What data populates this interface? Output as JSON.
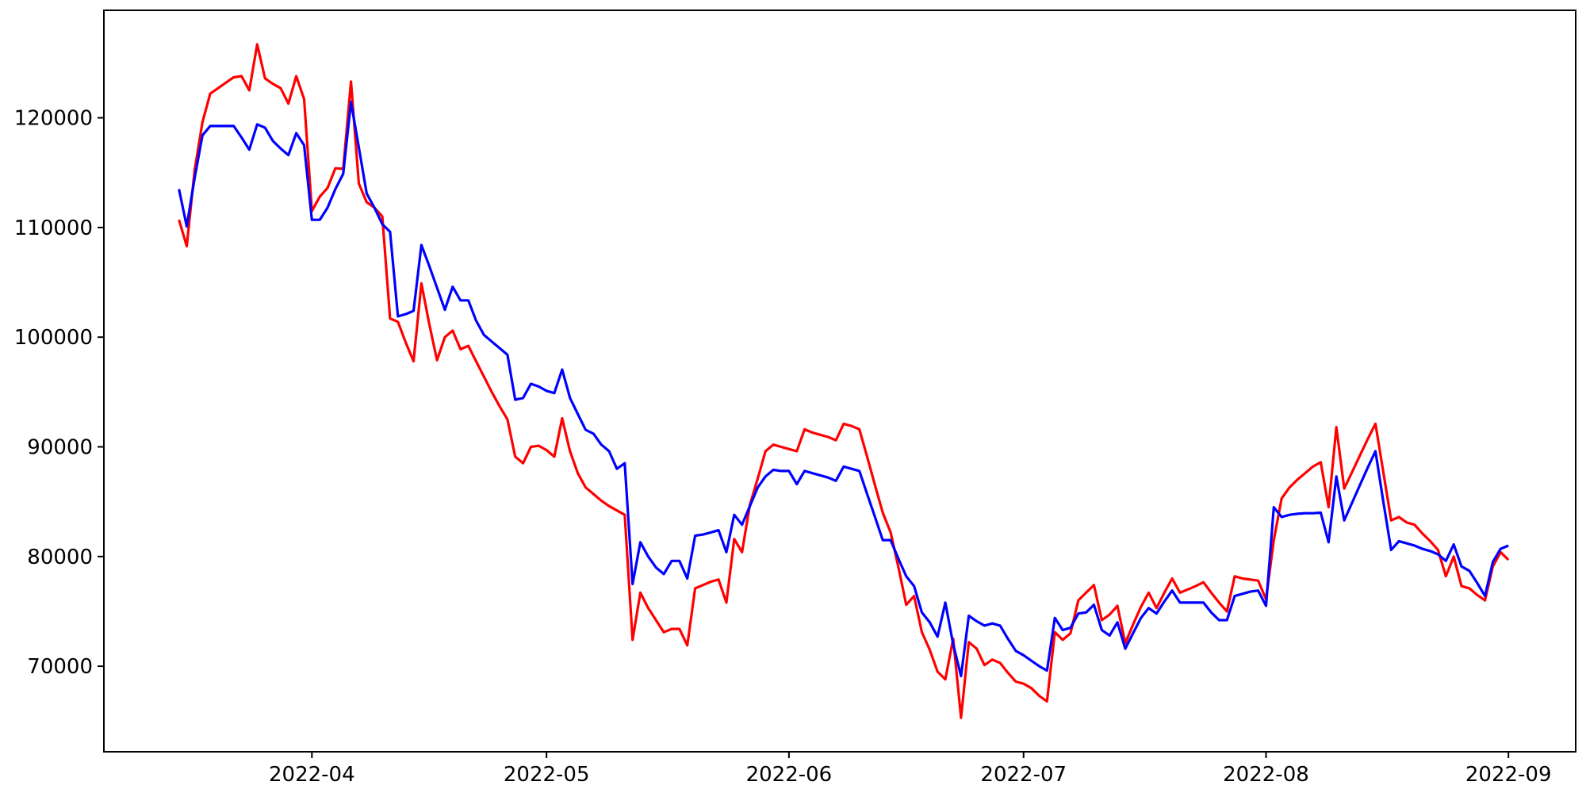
{
  "figure": {
    "background": "#ffffff",
    "axis_color": "#000000"
  },
  "chart_data": {
    "type": "line",
    "title": "",
    "xlabel": "",
    "ylabel": "",
    "grid": false,
    "legend": null,
    "start_date": "2022-03-15",
    "frequency": "daily",
    "x_tick_labels": [
      "2022-04",
      "2022-05",
      "2022-06",
      "2022-07",
      "2022-08",
      "2022-09"
    ],
    "x_tick_day_offsets": [
      17,
      47,
      78,
      108,
      139,
      170
    ],
    "y_ticks": [
      70000,
      80000,
      90000,
      100000,
      110000,
      120000
    ],
    "ylim": [
      62200,
      129800
    ],
    "xlim_days": [
      -9.6,
      178.6
    ],
    "series": [
      {
        "name": "series-red",
        "color": "#ff0000",
        "values": [
          110700,
          108300,
          115200,
          119600,
          122200,
          122700,
          123200,
          123700,
          123800,
          122500,
          126700,
          123600,
          123100,
          122700,
          121300,
          123800,
          121700,
          111500,
          112800,
          113600,
          115400,
          115350,
          123300,
          114000,
          112300,
          111800,
          111000,
          101700,
          101400,
          99500,
          97800,
          104900,
          101200,
          97900,
          100000,
          100600,
          98900,
          99200,
          97800,
          96400,
          95000,
          93700,
          92500,
          89100,
          88500,
          90000,
          90100,
          89700,
          89100,
          92600,
          89600,
          87600,
          86300,
          85700,
          85100,
          84600,
          84200,
          83800,
          72400,
          76700,
          75300,
          74200,
          73100,
          73400,
          73400,
          71900,
          77100,
          77400,
          77700,
          77900,
          75800,
          81600,
          80400,
          84700,
          87100,
          89600,
          90200,
          90000,
          89800,
          89600,
          91600,
          91300,
          91100,
          90900,
          90600,
          92100,
          91900,
          91600,
          89100,
          86500,
          84000,
          82200,
          79000,
          75600,
          76400,
          73100,
          71500,
          69500,
          68800,
          72500,
          65300,
          72200,
          71600,
          70100,
          70600,
          70300,
          69400,
          68600,
          68400,
          68000,
          67300,
          66800,
          73100,
          72400,
          73000,
          76000,
          76700,
          77400,
          74200,
          74700,
          75500,
          72100,
          73800,
          75400,
          76700,
          75300,
          76700,
          78000,
          76700,
          77000,
          77300,
          77650,
          76700,
          75800,
          75000,
          78200,
          78000,
          77900,
          77800,
          76100,
          81500,
          85300,
          86300,
          87000,
          87600,
          88200,
          88600,
          84500,
          91800,
          86200,
          87700,
          89200,
          90700,
          92100,
          87700,
          83300,
          83600,
          83100,
          82900,
          82100,
          81400,
          80600,
          78200,
          80000,
          77300,
          77100,
          76500,
          76000,
          79100,
          80400,
          79700
        ]
      },
      {
        "name": "series-blue",
        "color": "#0000ff",
        "values": [
          113500,
          110100,
          114500,
          118400,
          119250,
          119250,
          119250,
          119250,
          118200,
          117100,
          119400,
          119100,
          117900,
          117200,
          116600,
          118600,
          117500,
          110700,
          110700,
          111800,
          113500,
          114900,
          121450,
          117300,
          113100,
          111800,
          110300,
          109600,
          101900,
          102100,
          102400,
          108400,
          106500,
          104500,
          102500,
          104600,
          103350,
          103350,
          101500,
          100200,
          99600,
          99000,
          98400,
          94300,
          94450,
          95750,
          95500,
          95100,
          94900,
          97050,
          94450,
          93000,
          91550,
          91200,
          90200,
          89600,
          88000,
          88500,
          77500,
          81300,
          80000,
          79000,
          78400,
          79600,
          79600,
          78000,
          81900,
          82000,
          82200,
          82400,
          80400,
          83800,
          82900,
          84600,
          86300,
          87300,
          87900,
          87800,
          87800,
          86600,
          87800,
          87600,
          87400,
          87200,
          86900,
          88200,
          88000,
          87800,
          85700,
          83600,
          81500,
          81500,
          79800,
          78200,
          77300,
          74900,
          74000,
          72700,
          75800,
          72000,
          69100,
          74600,
          74100,
          73700,
          73900,
          73700,
          72500,
          71400,
          71000,
          70500,
          70000,
          69600,
          74400,
          73300,
          73500,
          74800,
          74900,
          75600,
          73300,
          72800,
          74000,
          71600,
          73000,
          74400,
          75300,
          74800,
          75900,
          76900,
          75800,
          75800,
          75800,
          75800,
          74900,
          74200,
          74200,
          76400,
          76600,
          76800,
          76900,
          75500,
          84500,
          83600,
          83800,
          83900,
          83950,
          83950,
          84000,
          81300,
          87300,
          83300,
          84900,
          86500,
          88100,
          89600,
          85000,
          80600,
          81400,
          81200,
          81000,
          80700,
          80500,
          80200,
          79600,
          81100,
          79100,
          78700,
          77600,
          76400,
          79500,
          80700,
          81000
        ]
      }
    ]
  }
}
